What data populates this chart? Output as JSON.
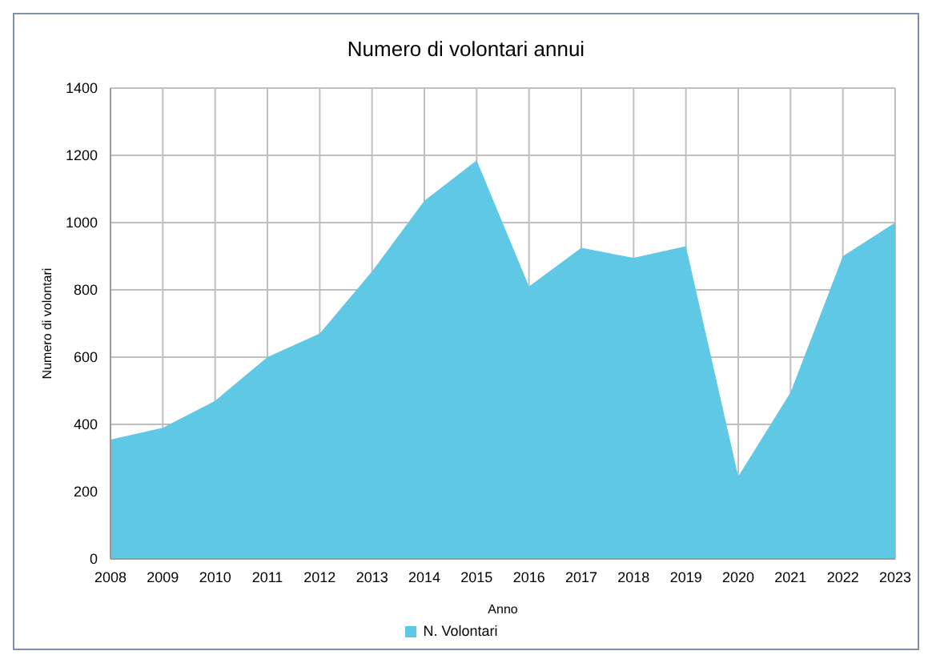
{
  "chart_data": {
    "type": "area",
    "title": "Numero di volontari annui",
    "xlabel": "Anno",
    "ylabel": "Numero di volontari",
    "x": [
      2008,
      2009,
      2010,
      2011,
      2012,
      2013,
      2014,
      2015,
      2016,
      2017,
      2018,
      2019,
      2020,
      2021,
      2022,
      2023
    ],
    "series": [
      {
        "name": "N. Volontari",
        "color": "#5ec8e5",
        "values": [
          355,
          390,
          470,
          600,
          670,
          855,
          1065,
          1185,
          810,
          925,
          895,
          930,
          245,
          495,
          900,
          1000
        ]
      }
    ],
    "xlim": [
      2008,
      2023
    ],
    "xticks": [
      2008,
      2009,
      2010,
      2011,
      2012,
      2013,
      2014,
      2015,
      2016,
      2017,
      2018,
      2019,
      2020,
      2021,
      2022,
      2023
    ],
    "ylim": [
      0,
      1400
    ],
    "yticks": [
      0,
      200,
      400,
      600,
      800,
      1000,
      1200,
      1400
    ],
    "grid": true,
    "legend": "bottom"
  }
}
